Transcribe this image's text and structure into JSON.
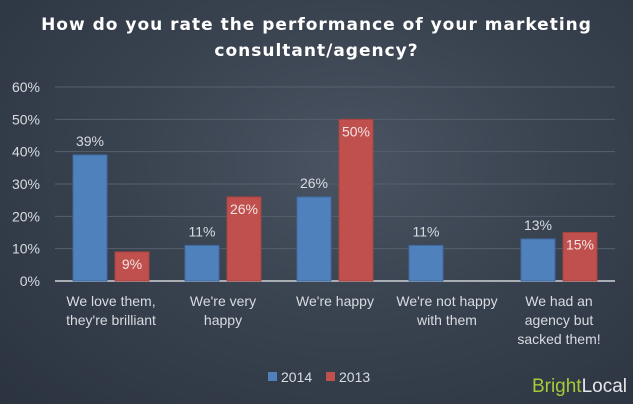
{
  "chart_data": {
    "type": "bar",
    "title": "How do you rate the performance of your marketing consultant/agency?",
    "categories": [
      [
        "We love them,",
        "they're brilliant"
      ],
      [
        "We're very",
        "happy"
      ],
      [
        "We're happy"
      ],
      [
        "We're not happy",
        "with them"
      ],
      [
        "We had an",
        "agency but",
        "sacked them!"
      ]
    ],
    "series": [
      {
        "name": "2014",
        "color": "#4f81bd",
        "values": [
          39,
          11,
          26,
          11,
          13
        ],
        "labels": [
          "39%",
          "11%",
          "26%",
          "11%",
          "13%"
        ]
      },
      {
        "name": "2013",
        "color": "#c0504d",
        "values": [
          9,
          26,
          50,
          null,
          15
        ],
        "labels": [
          "9%",
          "26%",
          "50%",
          "",
          "15%"
        ]
      }
    ],
    "ylim": [
      0,
      60
    ],
    "yticks": [
      "0%",
      "10%",
      "20%",
      "30%",
      "40%",
      "50%",
      "60%"
    ],
    "grid": true,
    "legend": "bottom"
  },
  "brand": {
    "part1": "Bright",
    "part2": "Local"
  }
}
